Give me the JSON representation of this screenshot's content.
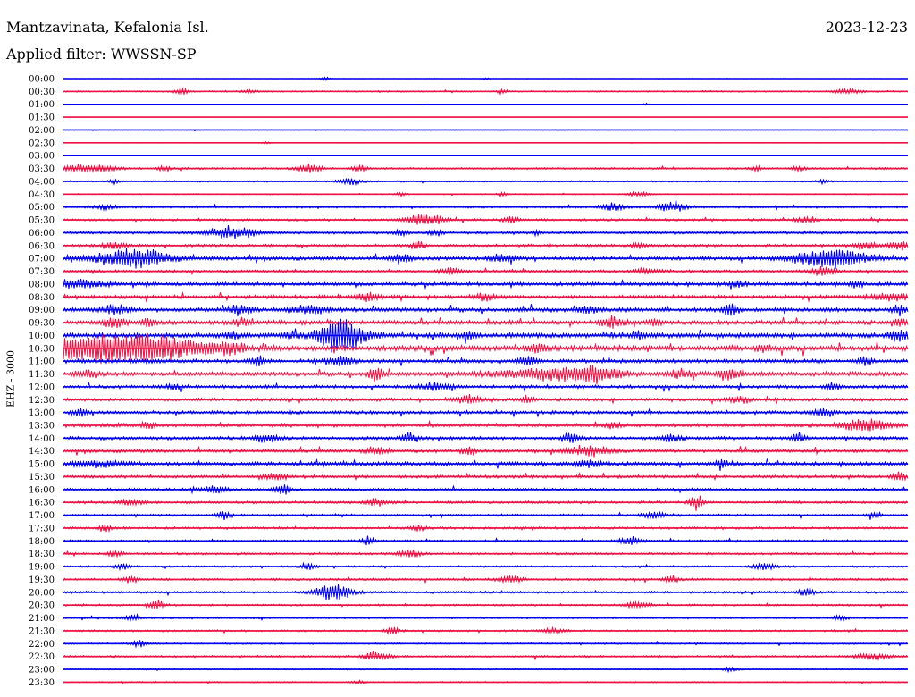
{
  "header": {
    "station": "Mantzavinata, Kefalonia Isl.",
    "filter": "Applied filter: WWSSN-SP",
    "date": "2023-12-23"
  },
  "chart_data": {
    "type": "line",
    "ylabel": "EHZ - 3000",
    "times": [
      "00:00",
      "00:30",
      "01:00",
      "01:30",
      "02:00",
      "02:30",
      "03:00",
      "03:30",
      "04:00",
      "04:30",
      "05:00",
      "05:30",
      "06:00",
      "06:30",
      "07:00",
      "07:30",
      "08:00",
      "08:30",
      "09:00",
      "09:30",
      "10:00",
      "10:30",
      "11:00",
      "11:30",
      "12:00",
      "12:30",
      "13:00",
      "13:30",
      "14:00",
      "14:30",
      "15:00",
      "15:30",
      "16:00",
      "16:30",
      "17:00",
      "17:30",
      "18:00",
      "18:30",
      "19:00",
      "19:30",
      "20:00",
      "20:30",
      "21:00",
      "21:30",
      "22:00",
      "22:30",
      "23:00",
      "23:30"
    ],
    "colors": [
      "#0000ee",
      "#ee1144"
    ],
    "noise": [
      0.3,
      0.9,
      0.3,
      0.2,
      0.6,
      0.3,
      0.2,
      1.2,
      1.0,
      0.7,
      1.4,
      1.4,
      1.6,
      1.6,
      2.2,
      1.6,
      2.2,
      2.2,
      2.6,
      2.6,
      3.0,
      3.2,
      2.4,
      2.6,
      2.0,
      2.0,
      2.0,
      2.2,
      2.0,
      2.0,
      2.4,
      1.8,
      1.6,
      1.6,
      1.4,
      1.4,
      1.4,
      1.4,
      1.2,
      1.4,
      1.4,
      1.2,
      1.2,
      1.2,
      1.0,
      1.2,
      0.8,
      0.8
    ],
    "events": [
      {
        "line": 0,
        "at": 0.31,
        "amp": 2,
        "dur": 0.004
      },
      {
        "line": 0,
        "at": 0.5,
        "amp": 1.5,
        "dur": 0.003
      },
      {
        "line": 1,
        "at": 0.14,
        "amp": 4,
        "dur": 0.006
      },
      {
        "line": 1,
        "at": 0.22,
        "amp": 2,
        "dur": 0.006
      },
      {
        "line": 1,
        "at": 0.52,
        "amp": 3,
        "dur": 0.004
      },
      {
        "line": 1,
        "at": 0.93,
        "amp": 3,
        "dur": 0.012
      },
      {
        "line": 2,
        "at": 0.69,
        "amp": 1.5,
        "dur": 0.003
      },
      {
        "line": 5,
        "at": 0.24,
        "amp": 2,
        "dur": 0.003
      },
      {
        "line": 7,
        "at": 0.02,
        "amp": 4,
        "dur": 0.02
      },
      {
        "line": 7,
        "at": 0.05,
        "amp": 3,
        "dur": 0.01
      },
      {
        "line": 7,
        "at": 0.12,
        "amp": 3,
        "dur": 0.006
      },
      {
        "line": 7,
        "at": 0.29,
        "amp": 6,
        "dur": 0.01
      },
      {
        "line": 7,
        "at": 0.35,
        "amp": 4,
        "dur": 0.006
      },
      {
        "line": 7,
        "at": 0.82,
        "amp": 3,
        "dur": 0.004
      },
      {
        "line": 7,
        "at": 0.87,
        "amp": 3,
        "dur": 0.006
      },
      {
        "line": 8,
        "at": 0.06,
        "amp": 3,
        "dur": 0.004
      },
      {
        "line": 8,
        "at": 0.34,
        "amp": 4,
        "dur": 0.01
      },
      {
        "line": 8,
        "at": 0.9,
        "amp": 3,
        "dur": 0.004
      },
      {
        "line": 9,
        "at": 0.4,
        "amp": 3,
        "dur": 0.004
      },
      {
        "line": 9,
        "at": 0.52,
        "amp": 3,
        "dur": 0.004
      },
      {
        "line": 9,
        "at": 0.68,
        "amp": 3,
        "dur": 0.01
      },
      {
        "line": 10,
        "at": 0.05,
        "amp": 3,
        "dur": 0.008
      },
      {
        "line": 10,
        "at": 0.65,
        "amp": 5,
        "dur": 0.01
      },
      {
        "line": 10,
        "at": 0.72,
        "amp": 6,
        "dur": 0.012
      },
      {
        "line": 11,
        "at": 0.43,
        "amp": 8,
        "dur": 0.015
      },
      {
        "line": 11,
        "at": 0.53,
        "amp": 4,
        "dur": 0.006
      },
      {
        "line": 11,
        "at": 0.88,
        "amp": 4,
        "dur": 0.008
      },
      {
        "line": 12,
        "at": 0.2,
        "amp": 8,
        "dur": 0.02
      },
      {
        "line": 12,
        "at": 0.4,
        "amp": 4,
        "dur": 0.006
      },
      {
        "line": 12,
        "at": 0.44,
        "amp": 4,
        "dur": 0.006
      },
      {
        "line": 12,
        "at": 0.56,
        "amp": 3,
        "dur": 0.004
      },
      {
        "line": 13,
        "at": 0.06,
        "amp": 4,
        "dur": 0.01
      },
      {
        "line": 13,
        "at": 0.42,
        "amp": 5,
        "dur": 0.006
      },
      {
        "line": 13,
        "at": 0.68,
        "amp": 4,
        "dur": 0.006
      },
      {
        "line": 13,
        "at": 0.95,
        "amp": 5,
        "dur": 0.01
      },
      {
        "line": 13,
        "at": 0.99,
        "amp": 5,
        "dur": 0.01
      },
      {
        "line": 14,
        "at": 0.08,
        "amp": 12,
        "dur": 0.03
      },
      {
        "line": 14,
        "at": 0.4,
        "amp": 5,
        "dur": 0.01
      },
      {
        "line": 14,
        "at": 0.52,
        "amp": 5,
        "dur": 0.01
      },
      {
        "line": 14,
        "at": 0.91,
        "amp": 12,
        "dur": 0.03
      },
      {
        "line": 15,
        "at": 0.46,
        "amp": 4,
        "dur": 0.01
      },
      {
        "line": 15,
        "at": 0.69,
        "amp": 4,
        "dur": 0.01
      },
      {
        "line": 15,
        "at": 0.9,
        "amp": 6,
        "dur": 0.01
      },
      {
        "line": 16,
        "at": 0.02,
        "amp": 5,
        "dur": 0.02
      },
      {
        "line": 16,
        "at": 0.8,
        "amp": 4,
        "dur": 0.006
      },
      {
        "line": 16,
        "at": 0.94,
        "amp": 4,
        "dur": 0.006
      },
      {
        "line": 17,
        "at": 0.36,
        "amp": 5,
        "dur": 0.01
      },
      {
        "line": 17,
        "at": 0.5,
        "amp": 4,
        "dur": 0.01
      },
      {
        "line": 17,
        "at": 0.98,
        "amp": 5,
        "dur": 0.015
      },
      {
        "line": 18,
        "at": 0.06,
        "amp": 6,
        "dur": 0.01
      },
      {
        "line": 18,
        "at": 0.21,
        "amp": 6,
        "dur": 0.01
      },
      {
        "line": 18,
        "at": 0.29,
        "amp": 6,
        "dur": 0.015
      },
      {
        "line": 18,
        "at": 0.62,
        "amp": 4,
        "dur": 0.01
      },
      {
        "line": 18,
        "at": 0.79,
        "amp": 8,
        "dur": 0.006
      },
      {
        "line": 18,
        "at": 0.99,
        "amp": 6,
        "dur": 0.006
      },
      {
        "line": 19,
        "at": 0.06,
        "amp": 6,
        "dur": 0.01
      },
      {
        "line": 19,
        "at": 0.1,
        "amp": 5,
        "dur": 0.006
      },
      {
        "line": 19,
        "at": 0.21,
        "amp": 5,
        "dur": 0.006
      },
      {
        "line": 19,
        "at": 0.65,
        "amp": 7,
        "dur": 0.01
      },
      {
        "line": 19,
        "at": 0.7,
        "amp": 4,
        "dur": 0.006
      },
      {
        "line": 19,
        "at": 0.99,
        "amp": 5,
        "dur": 0.006
      },
      {
        "line": 20,
        "at": 0.33,
        "amp": 22,
        "dur": 0.02
      },
      {
        "line": 20,
        "at": 0.2,
        "amp": 4,
        "dur": 0.006
      },
      {
        "line": 20,
        "at": 0.27,
        "amp": 4,
        "dur": 0.006
      },
      {
        "line": 20,
        "at": 0.48,
        "amp": 4,
        "dur": 0.006
      },
      {
        "line": 20,
        "at": 0.68,
        "amp": 4,
        "dur": 0.006
      },
      {
        "line": 20,
        "at": 0.99,
        "amp": 7,
        "dur": 0.01
      },
      {
        "line": 21,
        "at": 0.01,
        "amp": 10,
        "dur": 0.04
      },
      {
        "line": 21,
        "at": 0.1,
        "amp": 16,
        "dur": 0.05
      },
      {
        "line": 21,
        "at": 0.2,
        "amp": 6,
        "dur": 0.01
      },
      {
        "line": 21,
        "at": 0.56,
        "amp": 5,
        "dur": 0.01
      },
      {
        "line": 21,
        "at": 0.83,
        "amp": 4,
        "dur": 0.006
      },
      {
        "line": 22,
        "at": 0.23,
        "amp": 6,
        "dur": 0.006
      },
      {
        "line": 22,
        "at": 0.33,
        "amp": 6,
        "dur": 0.01
      },
      {
        "line": 22,
        "at": 0.55,
        "amp": 5,
        "dur": 0.008
      },
      {
        "line": 22,
        "at": 0.95,
        "amp": 5,
        "dur": 0.006
      },
      {
        "line": 23,
        "at": 0.03,
        "amp": 4,
        "dur": 0.01
      },
      {
        "line": 23,
        "at": 0.37,
        "amp": 8,
        "dur": 0.006
      },
      {
        "line": 23,
        "at": 0.57,
        "amp": 7,
        "dur": 0.04
      },
      {
        "line": 23,
        "at": 0.63,
        "amp": 9,
        "dur": 0.02
      },
      {
        "line": 23,
        "at": 0.73,
        "amp": 6,
        "dur": 0.01
      },
      {
        "line": 23,
        "at": 0.79,
        "amp": 6,
        "dur": 0.01
      },
      {
        "line": 24,
        "at": 0.13,
        "amp": 4,
        "dur": 0.006
      },
      {
        "line": 24,
        "at": 0.44,
        "amp": 4,
        "dur": 0.015
      },
      {
        "line": 24,
        "at": 0.91,
        "amp": 5,
        "dur": 0.006
      },
      {
        "line": 25,
        "at": 0.48,
        "amp": 5,
        "dur": 0.01
      },
      {
        "line": 25,
        "at": 0.55,
        "amp": 4,
        "dur": 0.006
      },
      {
        "line": 25,
        "at": 0.8,
        "amp": 4,
        "dur": 0.01
      },
      {
        "line": 26,
        "at": 0.02,
        "amp": 5,
        "dur": 0.006
      },
      {
        "line": 26,
        "at": 0.9,
        "amp": 5,
        "dur": 0.01
      },
      {
        "line": 27,
        "at": 0.1,
        "amp": 4,
        "dur": 0.006
      },
      {
        "line": 27,
        "at": 0.65,
        "amp": 5,
        "dur": 0.006
      },
      {
        "line": 27,
        "at": 0.95,
        "amp": 8,
        "dur": 0.02
      },
      {
        "line": 28,
        "at": 0.24,
        "amp": 5,
        "dur": 0.01
      },
      {
        "line": 28,
        "at": 0.41,
        "amp": 7,
        "dur": 0.006
      },
      {
        "line": 28,
        "at": 0.6,
        "amp": 7,
        "dur": 0.006
      },
      {
        "line": 28,
        "at": 0.72,
        "amp": 4,
        "dur": 0.01
      },
      {
        "line": 28,
        "at": 0.87,
        "amp": 5,
        "dur": 0.006
      },
      {
        "line": 29,
        "at": 0.37,
        "amp": 4,
        "dur": 0.01
      },
      {
        "line": 29,
        "at": 0.48,
        "amp": 6,
        "dur": 0.006
      },
      {
        "line": 29,
        "at": 0.62,
        "amp": 6,
        "dur": 0.02
      },
      {
        "line": 30,
        "at": 0.04,
        "amp": 4,
        "dur": 0.02
      },
      {
        "line": 30,
        "at": 0.62,
        "amp": 4,
        "dur": 0.01
      },
      {
        "line": 30,
        "at": 0.78,
        "amp": 4,
        "dur": 0.006
      },
      {
        "line": 31,
        "at": 0.25,
        "amp": 4,
        "dur": 0.01
      },
      {
        "line": 31,
        "at": 0.99,
        "amp": 6,
        "dur": 0.006
      },
      {
        "line": 32,
        "at": 0.18,
        "amp": 4,
        "dur": 0.01
      },
      {
        "line": 32,
        "at": 0.26,
        "amp": 8,
        "dur": 0.006
      },
      {
        "line": 33,
        "at": 0.08,
        "amp": 4,
        "dur": 0.01
      },
      {
        "line": 33,
        "at": 0.37,
        "amp": 4,
        "dur": 0.01
      },
      {
        "line": 33,
        "at": 0.75,
        "amp": 9,
        "dur": 0.006
      },
      {
        "line": 34,
        "at": 0.19,
        "amp": 5,
        "dur": 0.006
      },
      {
        "line": 34,
        "at": 0.7,
        "amp": 4,
        "dur": 0.01
      },
      {
        "line": 34,
        "at": 0.96,
        "amp": 4,
        "dur": 0.006
      },
      {
        "line": 35,
        "at": 0.05,
        "amp": 4,
        "dur": 0.006
      },
      {
        "line": 35,
        "at": 0.42,
        "amp": 4,
        "dur": 0.006
      },
      {
        "line": 36,
        "at": 0.36,
        "amp": 5,
        "dur": 0.006
      },
      {
        "line": 36,
        "at": 0.67,
        "amp": 4,
        "dur": 0.01
      },
      {
        "line": 37,
        "at": 0.06,
        "amp": 4,
        "dur": 0.006
      },
      {
        "line": 37,
        "at": 0.41,
        "amp": 4,
        "dur": 0.01
      },
      {
        "line": 38,
        "at": 0.07,
        "amp": 4,
        "dur": 0.006
      },
      {
        "line": 38,
        "at": 0.29,
        "amp": 5,
        "dur": 0.006
      },
      {
        "line": 38,
        "at": 0.83,
        "amp": 4,
        "dur": 0.01
      },
      {
        "line": 39,
        "at": 0.08,
        "amp": 5,
        "dur": 0.006
      },
      {
        "line": 39,
        "at": 0.53,
        "amp": 4,
        "dur": 0.01
      },
      {
        "line": 39,
        "at": 0.72,
        "amp": 5,
        "dur": 0.006
      },
      {
        "line": 40,
        "at": 0.32,
        "amp": 11,
        "dur": 0.015
      },
      {
        "line": 40,
        "at": 0.88,
        "amp": 6,
        "dur": 0.006
      },
      {
        "line": 41,
        "at": 0.11,
        "amp": 7,
        "dur": 0.006
      },
      {
        "line": 41,
        "at": 0.68,
        "amp": 4,
        "dur": 0.01
      },
      {
        "line": 42,
        "at": 0.08,
        "amp": 3,
        "dur": 0.006
      },
      {
        "line": 42,
        "at": 0.92,
        "amp": 3,
        "dur": 0.006
      },
      {
        "line": 43,
        "at": 0.39,
        "amp": 4,
        "dur": 0.006
      },
      {
        "line": 43,
        "at": 0.58,
        "amp": 3,
        "dur": 0.01
      },
      {
        "line": 44,
        "at": 0.09,
        "amp": 4,
        "dur": 0.006
      },
      {
        "line": 45,
        "at": 0.37,
        "amp": 6,
        "dur": 0.01
      },
      {
        "line": 45,
        "at": 0.96,
        "amp": 4,
        "dur": 0.015
      },
      {
        "line": 46,
        "at": 0.79,
        "amp": 3,
        "dur": 0.006
      },
      {
        "line": 47,
        "at": 0.35,
        "amp": 2,
        "dur": 0.006
      }
    ]
  }
}
